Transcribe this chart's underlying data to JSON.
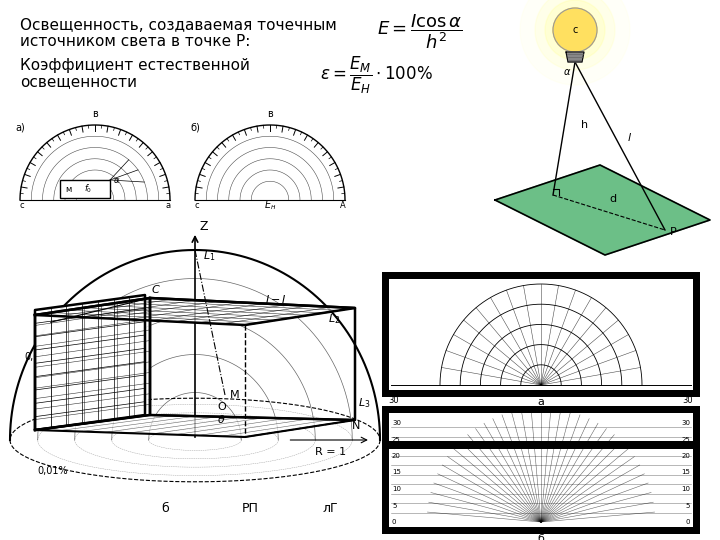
{
  "title1": "Освещенность, создаваемая точечным",
  "title1b": "источником света в точке Р:",
  "title2": "Коэффициент естественной",
  "title2b": "освещенности",
  "bg_color": "#ffffff",
  "text_color": "#000000",
  "green_color": "#5cb87a"
}
